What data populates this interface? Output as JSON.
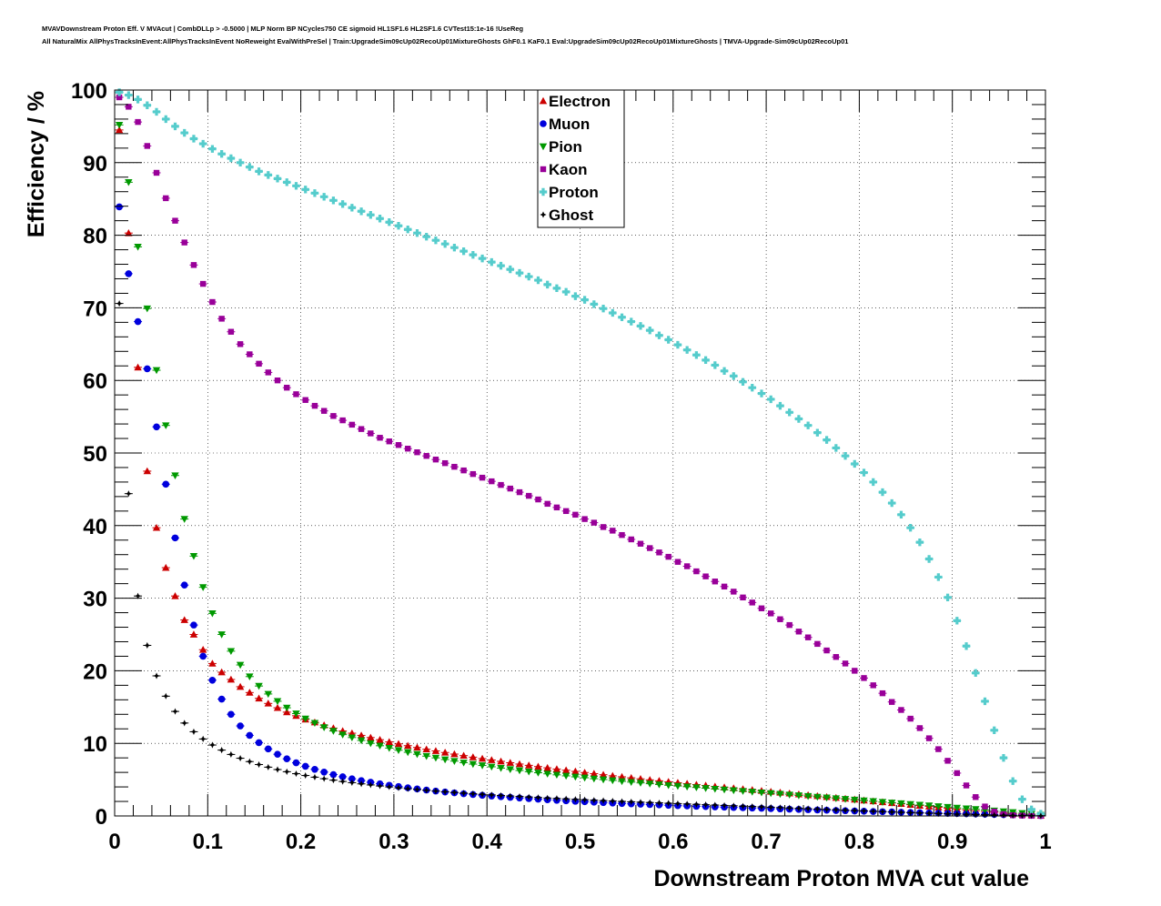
{
  "header": {
    "title_line1": "MVAVDownstream Proton Eff. V MVAcut | CombDLLp > -0.5000 | MLP Norm BP NCycles750 CE sigmoid HL1SF1.6 HL2SF1.6 CVTest15:1e-16 !UseReg",
    "title_line2": "All NaturalMix AllPhysTracksInEvent:AllPhysTracksInEvent NoReweight EvalWithPreSel | Train:UpgradeSim09cUp02RecoUp01MixtureGhosts GhF0.1 KaF0.1 Eval:UpgradeSim09cUp02RecoUp01MixtureGhosts | TMVA-Upgrade-Sim09cUp02RecoUp01"
  },
  "chart_data": {
    "type": "scatter",
    "xlabel": "Downstream Proton MVA cut value",
    "ylabel": "Efficiency / %",
    "xlim": [
      0,
      1
    ],
    "ylim": [
      0,
      100
    ],
    "x_ticks": [
      "0",
      "0.1",
      "0.2",
      "0.3",
      "0.4",
      "0.5",
      "0.6",
      "0.7",
      "0.8",
      "0.9",
      "1"
    ],
    "y_ticks": [
      "0",
      "10",
      "20",
      "30",
      "40",
      "50",
      "60",
      "70",
      "80",
      "90",
      "100"
    ],
    "grid": true,
    "legend_position": "top-center",
    "x": [
      0.005,
      0.015,
      0.025,
      0.035,
      0.045,
      0.055,
      0.065,
      0.075,
      0.085,
      0.095,
      0.105,
      0.115,
      0.125,
      0.135,
      0.145,
      0.155,
      0.165,
      0.175,
      0.185,
      0.195,
      0.205,
      0.215,
      0.225,
      0.235,
      0.245,
      0.255,
      0.265,
      0.275,
      0.285,
      0.295,
      0.305,
      0.315,
      0.325,
      0.335,
      0.345,
      0.355,
      0.365,
      0.375,
      0.385,
      0.395,
      0.405,
      0.415,
      0.425,
      0.435,
      0.445,
      0.455,
      0.465,
      0.475,
      0.485,
      0.495,
      0.505,
      0.515,
      0.525,
      0.535,
      0.545,
      0.555,
      0.565,
      0.575,
      0.585,
      0.595,
      0.605,
      0.615,
      0.625,
      0.635,
      0.645,
      0.655,
      0.665,
      0.675,
      0.685,
      0.695,
      0.705,
      0.715,
      0.725,
      0.735,
      0.745,
      0.755,
      0.765,
      0.775,
      0.785,
      0.795,
      0.805,
      0.815,
      0.825,
      0.835,
      0.845,
      0.855,
      0.865,
      0.875,
      0.885,
      0.895,
      0.905,
      0.915,
      0.925,
      0.935,
      0.945,
      0.955,
      0.965,
      0.975,
      0.985,
      0.995
    ],
    "series": [
      {
        "name": "Electron",
        "color": "#cc0000",
        "marker": "triangle-up",
        "values": [
          94.5,
          80.3,
          61.8,
          47.5,
          39.7,
          34.2,
          30.3,
          27.0,
          25.0,
          22.9,
          21.0,
          19.8,
          18.8,
          17.8,
          17.0,
          16.2,
          15.5,
          14.9,
          14.3,
          13.8,
          13.3,
          12.9,
          12.5,
          12.1,
          11.7,
          11.4,
          11.1,
          10.8,
          10.5,
          10.2,
          9.93,
          9.68,
          9.43,
          9.19,
          8.96,
          8.74,
          8.52,
          8.31,
          8.1,
          7.9,
          7.71,
          7.52,
          7.33,
          7.15,
          6.97,
          6.8,
          6.63,
          6.46,
          6.3,
          6.14,
          5.98,
          5.83,
          5.68,
          5.53,
          5.39,
          5.25,
          5.11,
          4.97,
          4.84,
          4.71,
          4.58,
          4.45,
          4.32,
          4.2,
          4.07,
          3.95,
          3.83,
          3.71,
          3.59,
          3.47,
          3.35,
          3.23,
          3.11,
          2.99,
          2.87,
          2.75,
          2.63,
          2.51,
          2.39,
          2.27,
          2.15,
          2.03,
          1.91,
          1.79,
          1.67,
          1.55,
          1.43,
          1.31,
          1.19,
          1.07,
          0.95,
          0.83,
          0.72,
          0.61,
          0.5,
          0.4,
          0.3,
          0.21,
          0.13,
          0.06
        ]
      },
      {
        "name": "Muon",
        "color": "#0000dd",
        "marker": "circle",
        "values": [
          83.9,
          74.7,
          68.1,
          61.6,
          53.6,
          45.7,
          38.3,
          31.8,
          26.3,
          22.0,
          18.7,
          16.1,
          14.0,
          12.4,
          11.1,
          10.1,
          9.23,
          8.5,
          7.87,
          7.32,
          6.84,
          6.42,
          6.04,
          5.7,
          5.4,
          5.12,
          4.87,
          4.64,
          4.43,
          4.23,
          4.05,
          3.88,
          3.72,
          3.57,
          3.43,
          3.3,
          3.18,
          3.06,
          2.95,
          2.84,
          2.74,
          2.65,
          2.56,
          2.47,
          2.39,
          2.31,
          2.23,
          2.16,
          2.09,
          2.02,
          1.96,
          1.9,
          1.84,
          1.78,
          1.72,
          1.67,
          1.62,
          1.57,
          1.52,
          1.47,
          1.42,
          1.38,
          1.33,
          1.29,
          1.25,
          1.21,
          1.17,
          1.13,
          1.09,
          1.05,
          1.01,
          0.97,
          0.93,
          0.9,
          0.86,
          0.82,
          0.79,
          0.75,
          0.72,
          0.68,
          0.65,
          0.61,
          0.58,
          0.55,
          0.51,
          0.48,
          0.45,
          0.42,
          0.39,
          0.36,
          0.33,
          0.3,
          0.27,
          0.24,
          0.21,
          0.18,
          0.15,
          0.12,
          0.09,
          0.06
        ]
      },
      {
        "name": "Pion",
        "color": "#009900",
        "marker": "triangle-down",
        "values": [
          95.2,
          87.3,
          78.4,
          69.9,
          61.4,
          53.8,
          46.9,
          40.9,
          35.8,
          31.5,
          27.9,
          25.0,
          22.7,
          20.8,
          19.2,
          17.9,
          16.8,
          15.8,
          14.9,
          14.1,
          13.4,
          12.8,
          12.2,
          11.7,
          11.2,
          10.8,
          10.4,
          10.0,
          9.67,
          9.35,
          9.05,
          8.77,
          8.5,
          8.24,
          8.0,
          7.77,
          7.55,
          7.34,
          7.14,
          6.95,
          6.77,
          6.59,
          6.42,
          6.26,
          6.1,
          5.95,
          5.8,
          5.66,
          5.52,
          5.39,
          5.26,
          5.13,
          5.01,
          4.89,
          4.77,
          4.66,
          4.55,
          4.44,
          4.33,
          4.22,
          4.12,
          4.02,
          3.92,
          3.82,
          3.72,
          3.62,
          3.52,
          3.42,
          3.32,
          3.22,
          3.12,
          3.02,
          2.92,
          2.82,
          2.72,
          2.62,
          2.52,
          2.42,
          2.32,
          2.22,
          2.12,
          2.02,
          1.92,
          1.82,
          1.72,
          1.62,
          1.52,
          1.42,
          1.32,
          1.22,
          1.12,
          1.02,
          0.92,
          0.82,
          0.72,
          0.62,
          0.5,
          0.38,
          0.26,
          0.12
        ]
      },
      {
        "name": "Kaon",
        "color": "#990099",
        "marker": "square",
        "values": [
          99.0,
          97.7,
          95.6,
          92.3,
          88.6,
          85.1,
          82.0,
          79.0,
          75.9,
          73.3,
          70.8,
          68.5,
          66.7,
          65.0,
          63.6,
          62.3,
          61.1,
          60.0,
          59.0,
          58.1,
          57.3,
          56.5,
          55.8,
          55.1,
          54.5,
          53.9,
          53.3,
          52.7,
          52.1,
          51.6,
          51.1,
          50.6,
          50.1,
          49.6,
          49.1,
          48.6,
          48.1,
          47.6,
          47.1,
          46.6,
          46.1,
          45.6,
          45.1,
          44.6,
          44.1,
          43.6,
          43.0,
          42.5,
          42.0,
          41.5,
          40.9,
          40.4,
          39.8,
          39.3,
          38.7,
          38.1,
          37.5,
          36.9,
          36.3,
          35.7,
          35.0,
          34.4,
          33.7,
          33.0,
          32.3,
          31.6,
          30.9,
          30.1,
          29.4,
          28.6,
          27.9,
          27.1,
          26.3,
          25.4,
          24.6,
          23.7,
          22.8,
          21.9,
          21.0,
          20.0,
          19.0,
          18.0,
          16.9,
          15.7,
          14.6,
          13.4,
          12.1,
          10.7,
          9.2,
          7.6,
          5.9,
          4.2,
          2.6,
          1.3,
          0.6,
          0.25,
          0.1,
          0.05,
          0.02,
          0.01
        ]
      },
      {
        "name": "Proton",
        "color": "#55cccc",
        "marker": "cross",
        "values": [
          99.7,
          99.3,
          98.7,
          97.9,
          97.0,
          96.0,
          95.0,
          94.1,
          93.3,
          92.6,
          91.9,
          91.2,
          90.6,
          90.0,
          89.4,
          88.8,
          88.3,
          87.8,
          87.3,
          86.8,
          86.3,
          85.8,
          85.3,
          84.8,
          84.3,
          83.8,
          83.3,
          82.8,
          82.3,
          81.8,
          81.3,
          80.8,
          80.3,
          79.8,
          79.3,
          78.8,
          78.3,
          77.8,
          77.3,
          76.8,
          76.3,
          75.8,
          75.3,
          74.8,
          74.3,
          73.8,
          73.2,
          72.7,
          72.2,
          71.6,
          71.1,
          70.5,
          69.9,
          69.3,
          68.7,
          68.1,
          67.5,
          66.9,
          66.2,
          65.6,
          64.9,
          64.2,
          63.5,
          62.8,
          62.1,
          61.3,
          60.6,
          59.8,
          59.0,
          58.2,
          57.4,
          56.5,
          55.6,
          54.7,
          53.8,
          52.8,
          51.8,
          50.7,
          49.6,
          48.5,
          47.3,
          46.0,
          44.6,
          43.1,
          41.5,
          39.7,
          37.7,
          35.4,
          32.9,
          30.1,
          26.9,
          23.4,
          19.7,
          15.8,
          11.8,
          8.0,
          4.8,
          2.3,
          0.9,
          0.3
        ]
      },
      {
        "name": "Ghost",
        "color": "#000000",
        "marker": "star",
        "values": [
          70.6,
          44.4,
          30.3,
          23.5,
          19.3,
          16.5,
          14.4,
          12.8,
          11.6,
          10.6,
          9.77,
          9.07,
          8.47,
          7.95,
          7.49,
          7.08,
          6.72,
          6.39,
          6.09,
          5.82,
          5.57,
          5.34,
          5.13,
          4.93,
          4.75,
          4.58,
          4.42,
          4.27,
          4.13,
          4.0,
          3.87,
          3.75,
          3.64,
          3.53,
          3.43,
          3.33,
          3.24,
          3.15,
          3.06,
          2.98,
          2.9,
          2.82,
          2.75,
          2.68,
          2.61,
          2.54,
          2.47,
          2.41,
          2.35,
          2.29,
          2.23,
          2.17,
          2.11,
          2.06,
          2.0,
          1.95,
          1.9,
          1.85,
          1.8,
          1.75,
          1.7,
          1.65,
          1.6,
          1.55,
          1.5,
          1.45,
          1.4,
          1.35,
          1.3,
          1.25,
          1.2,
          1.15,
          1.1,
          1.05,
          1.0,
          0.95,
          0.9,
          0.85,
          0.8,
          0.75,
          0.7,
          0.65,
          0.6,
          0.55,
          0.5,
          0.45,
          0.41,
          0.37,
          0.33,
          0.29,
          0.25,
          0.22,
          0.19,
          0.16,
          0.13,
          0.1,
          0.08,
          0.06,
          0.04,
          0.02
        ]
      }
    ]
  }
}
